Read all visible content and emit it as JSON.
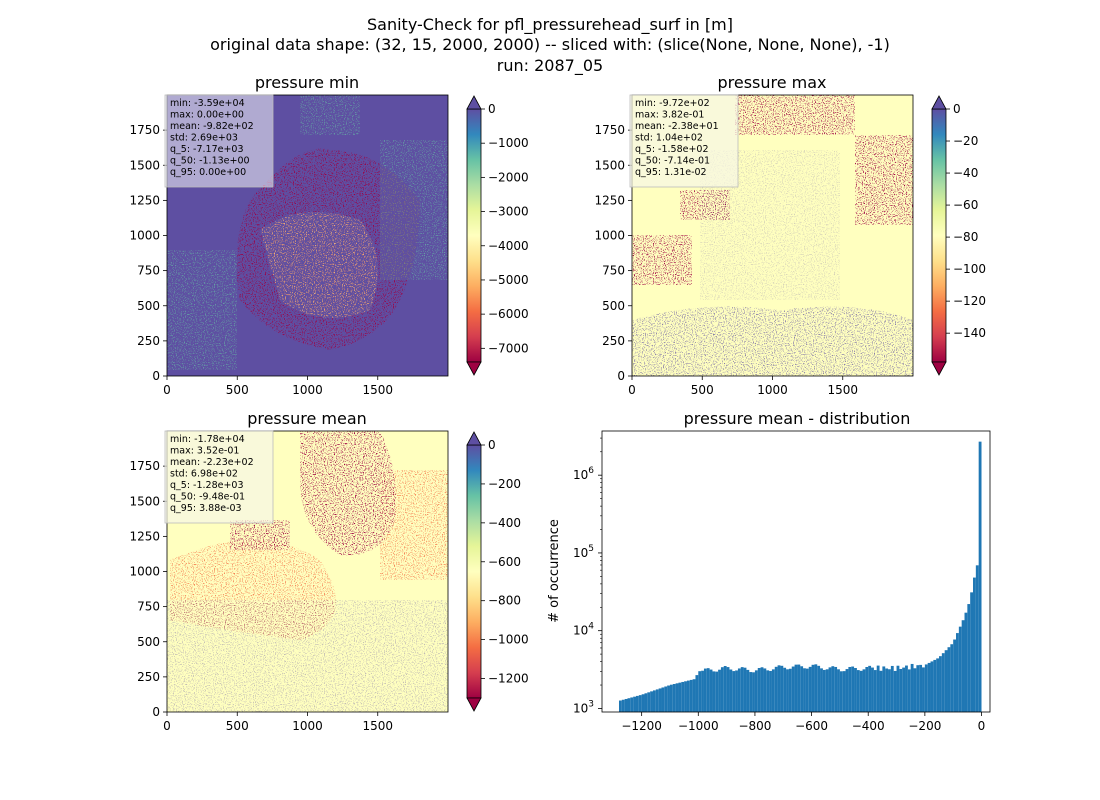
{
  "figure": {
    "title_lines": [
      "Sanity-Check for pfl_pressurehead_surf in [m]",
      "original data shape: (32, 15, 2000, 2000) -- sliced with: (slice(None, None, None), -1)",
      "run: 2087_05"
    ]
  },
  "colors": {
    "spectral": [
      "#9e0142",
      "#d53e4f",
      "#f46d43",
      "#fdae61",
      "#fee08b",
      "#ffffbf",
      "#e6f598",
      "#abdda4",
      "#66c2a5",
      "#3288bd",
      "#5e4fa2"
    ],
    "histogram": "#1f77b4"
  },
  "chart_data": [
    {
      "type": "heatmap",
      "title": "pressure min",
      "xlim": [
        0,
        2000
      ],
      "ylim": [
        0,
        2000
      ],
      "xticks": [
        0,
        500,
        1000,
        1500
      ],
      "yticks": [
        0,
        250,
        500,
        750,
        1000,
        1250,
        1500,
        1750
      ],
      "colorbar": {
        "vmin": -7400,
        "vmax": 0,
        "ticks": [
          0,
          -1000,
          -2000,
          -3000,
          -4000,
          -5000,
          -6000,
          -7000
        ],
        "extend": "both"
      },
      "stats": [
        "min: -3.59e+04",
        "max: 0.00e+00",
        "mean: -9.82e+02",
        "std: 2.69e+03",
        "q_5: -7.17e+03",
        "q_50: -1.13e+00",
        "q_95: 0.00e+00"
      ]
    },
    {
      "type": "heatmap",
      "title": "pressure max",
      "xlim": [
        0,
        2000
      ],
      "ylim": [
        0,
        2000
      ],
      "xticks": [
        0,
        500,
        1000,
        1500
      ],
      "yticks": [
        0,
        250,
        500,
        750,
        1000,
        1250,
        1500,
        1750
      ],
      "colorbar": {
        "vmin": -158,
        "vmax": 0,
        "ticks": [
          0,
          -20,
          -40,
          -60,
          -80,
          -100,
          -120,
          -140
        ],
        "extend": "both"
      },
      "stats": [
        "min: -9.72e+02",
        "max: 3.82e-01",
        "mean: -2.38e+01",
        "std: 1.04e+02",
        "q_5: -1.58e+02",
        "q_50: -7.14e-01",
        "q_95: 1.31e-02"
      ]
    },
    {
      "type": "heatmap",
      "title": "pressure mean",
      "xlim": [
        0,
        2000
      ],
      "ylim": [
        0,
        2000
      ],
      "xticks": [
        0,
        500,
        1000,
        1500
      ],
      "yticks": [
        0,
        250,
        500,
        750,
        1000,
        1250,
        1500,
        1750
      ],
      "colorbar": {
        "vmin": -1300,
        "vmax": 0,
        "ticks": [
          0,
          -200,
          -400,
          -600,
          -800,
          -1000,
          -1200
        ],
        "extend": "both"
      },
      "stats": [
        "min: -1.78e+04",
        "max: 3.52e-01",
        "mean: -2.23e+02",
        "std: 6.98e+02",
        "q_5: -1.28e+03",
        "q_50: -9.48e-01",
        "q_95: 3.88e-03"
      ]
    },
    {
      "type": "bar",
      "title": "pressure mean - distribution",
      "ylabel": "# of occurrence",
      "xlim": [
        -1340,
        30
      ],
      "xticks": [
        -1200,
        -1000,
        -800,
        -600,
        -400,
        -200,
        0
      ],
      "yscale": "log",
      "ylim": [
        900,
        3700000
      ],
      "yticks": [
        1000,
        10000,
        100000,
        1000000
      ],
      "bins": {
        "start": -1280,
        "end": 0,
        "width": 10
      },
      "anchors": [
        [
          -1280,
          1250
        ],
        [
          -1200,
          1500
        ],
        [
          -1100,
          2000
        ],
        [
          -1010,
          2400
        ],
        [
          -1000,
          3000
        ],
        [
          -900,
          3300
        ],
        [
          -800,
          3100
        ],
        [
          -700,
          3400
        ],
        [
          -600,
          3500
        ],
        [
          -500,
          3200
        ],
        [
          -400,
          3300
        ],
        [
          -300,
          3300
        ],
        [
          -200,
          3600
        ],
        [
          -150,
          4500
        ],
        [
          -100,
          7000
        ],
        [
          -60,
          15000
        ],
        [
          -40,
          25000
        ],
        [
          -20,
          60000
        ],
        [
          -10,
          80000
        ],
        [
          0,
          2700000
        ]
      ]
    }
  ]
}
